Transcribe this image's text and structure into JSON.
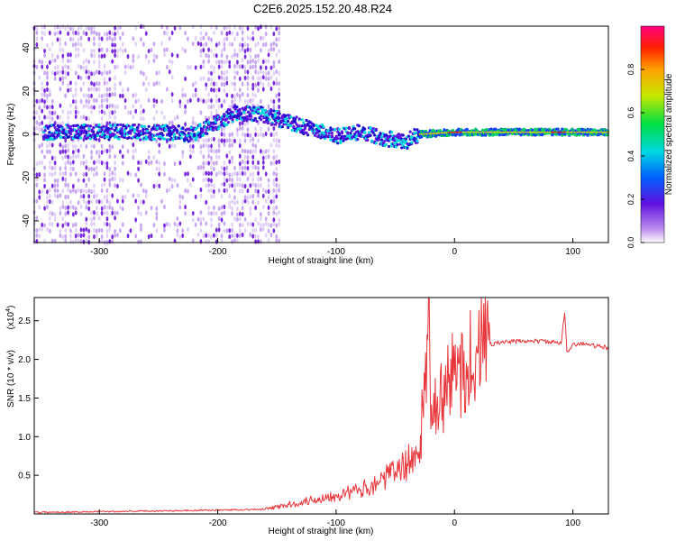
{
  "title": "C2E6.2025.152.20.48.R24",
  "colors": {
    "snr_line": "#e8353a",
    "spectrogram_low": "#dcc8f0",
    "spectrogram_mid": "#7a2be0"
  },
  "chart_data": [
    {
      "type": "heatmap",
      "xlabel": "Height of straight line (km)",
      "ylabel": "Frequency (Hz)",
      "xlim": [
        -355,
        130
      ],
      "ylim": [
        -50,
        50
      ],
      "x_ticks": [
        -300,
        -200,
        -100,
        0,
        100
      ],
      "y_ticks": [
        -40,
        -20,
        0,
        20,
        40
      ],
      "grid": false,
      "colorbar": {
        "label": "Normalized spectral amplitude",
        "range": [
          0,
          1
        ],
        "ticks": [
          0.0,
          0.2,
          0.4,
          0.6,
          0.8
        ],
        "colormap": "rainbow"
      },
      "ridge": [
        {
          "x": -300,
          "y": 1
        },
        {
          "x": -250,
          "y": 1
        },
        {
          "x": -220,
          "y": 0
        },
        {
          "x": -185,
          "y": 10
        },
        {
          "x": -160,
          "y": 9
        },
        {
          "x": -130,
          "y": 4
        },
        {
          "x": -100,
          "y": -1
        },
        {
          "x": -80,
          "y": 1
        },
        {
          "x": -60,
          "y": -2
        },
        {
          "x": -40,
          "y": -3
        },
        {
          "x": -30,
          "y": 0
        },
        {
          "x": 0,
          "y": 1
        },
        {
          "x": 50,
          "y": 1
        },
        {
          "x": 100,
          "y": 1
        },
        {
          "x": 130,
          "y": 1
        }
      ]
    },
    {
      "type": "line",
      "xlabel": "Height of straight line (km)",
      "ylabel": "SNR (10 * v/v)",
      "yscale_label": "(x10",
      "yscale_exp": "4",
      "xlim": [
        -355,
        130
      ],
      "ylim": [
        0,
        2.8
      ],
      "x_ticks": [
        -300,
        -200,
        -100,
        0,
        100
      ],
      "y_ticks": [
        0.5,
        1.0,
        1.5,
        2.0,
        2.5
      ],
      "grid": false,
      "series": [
        {
          "x": [
            -355,
            -300,
            -250,
            -200,
            -160,
            -140,
            -120,
            -100,
            -80,
            -60,
            -50,
            -40,
            -30,
            -25,
            -22,
            -20,
            -15,
            -10,
            -5,
            0,
            10,
            20,
            30,
            40,
            60,
            80,
            90,
            93,
            95,
            100,
            110,
            120,
            130
          ],
          "values": [
            0.02,
            0.03,
            0.04,
            0.05,
            0.06,
            0.12,
            0.18,
            0.25,
            0.3,
            0.45,
            0.55,
            0.65,
            0.8,
            1.6,
            2.8,
            1.1,
            1.4,
            1.5,
            1.7,
            1.8,
            1.95,
            2.1,
            2.2,
            2.22,
            2.24,
            2.23,
            2.2,
            2.6,
            2.1,
            2.2,
            2.2,
            2.17,
            2.15
          ]
        }
      ]
    }
  ]
}
